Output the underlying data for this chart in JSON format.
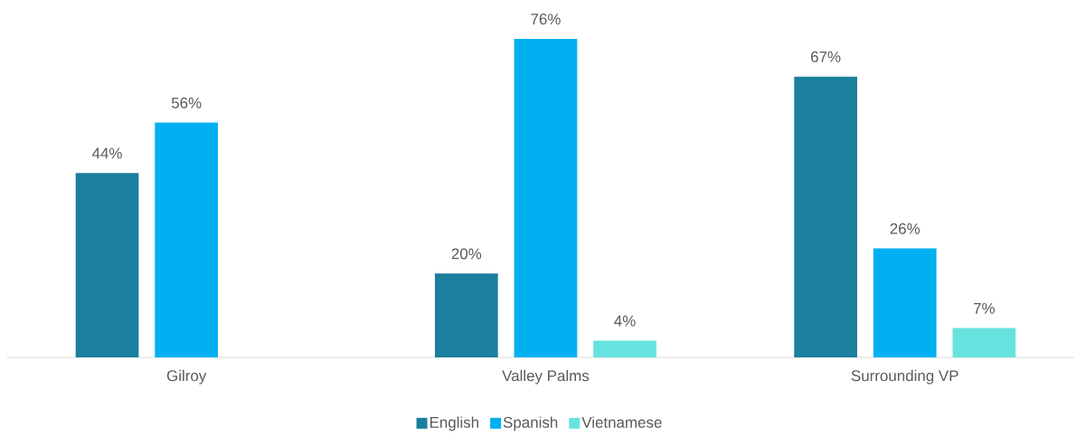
{
  "chart_data": {
    "type": "bar",
    "categories": [
      "Gilroy",
      "Valley Palms",
      "Surrounding VP"
    ],
    "series": [
      {
        "name": "English",
        "color": "#1b7f9e",
        "values": [
          44,
          20,
          67
        ],
        "value_labels": [
          "44%",
          "20%",
          "67%"
        ]
      },
      {
        "name": "Spanish",
        "color": "#00b0f0",
        "values": [
          56,
          76,
          26
        ],
        "value_labels": [
          "56%",
          "76%",
          "26%"
        ]
      },
      {
        "name": "Vietnamese",
        "color": "#66e3de",
        "values": [
          null,
          4,
          7
        ],
        "value_labels": [
          null,
          "4%",
          "7%"
        ]
      }
    ],
    "legend": "bottom",
    "grid": false
  }
}
